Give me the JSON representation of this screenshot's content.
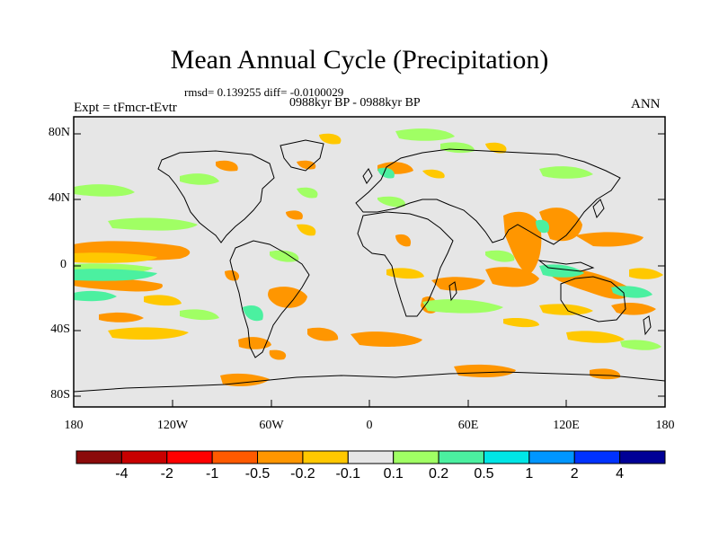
{
  "map": {
    "title": "Mean Annual Cycle (Precipitation)",
    "stats": "rmsd= 0.139255 diff= -0.0100029",
    "period": "0988kyr BP - 0988kyr BP",
    "experiment": "Expt = tFmcr-tEvtr",
    "season": "ANN",
    "lat_labels": [
      "80N",
      "40N",
      "0",
      "40S",
      "80S"
    ],
    "lon_labels": [
      "180",
      "120W",
      "60W",
      "0",
      "60E",
      "120E",
      "180"
    ],
    "background_color": "#e6e6e6"
  },
  "colorbar": {
    "labels": [
      "-4",
      "-2",
      "-1",
      "-0.5",
      "-0.2",
      "-0.1",
      "0.1",
      "0.2",
      "0.5",
      "1",
      "2",
      "4"
    ],
    "colors": [
      "#8b0a0a",
      "#c80000",
      "#ff0000",
      "#ff5a00",
      "#ff9600",
      "#ffc800",
      "#e6e6e6",
      "#a0ff64",
      "#4bf0a0",
      "#00e6e6",
      "#0096ff",
      "#0032ff",
      "#000096"
    ]
  }
}
